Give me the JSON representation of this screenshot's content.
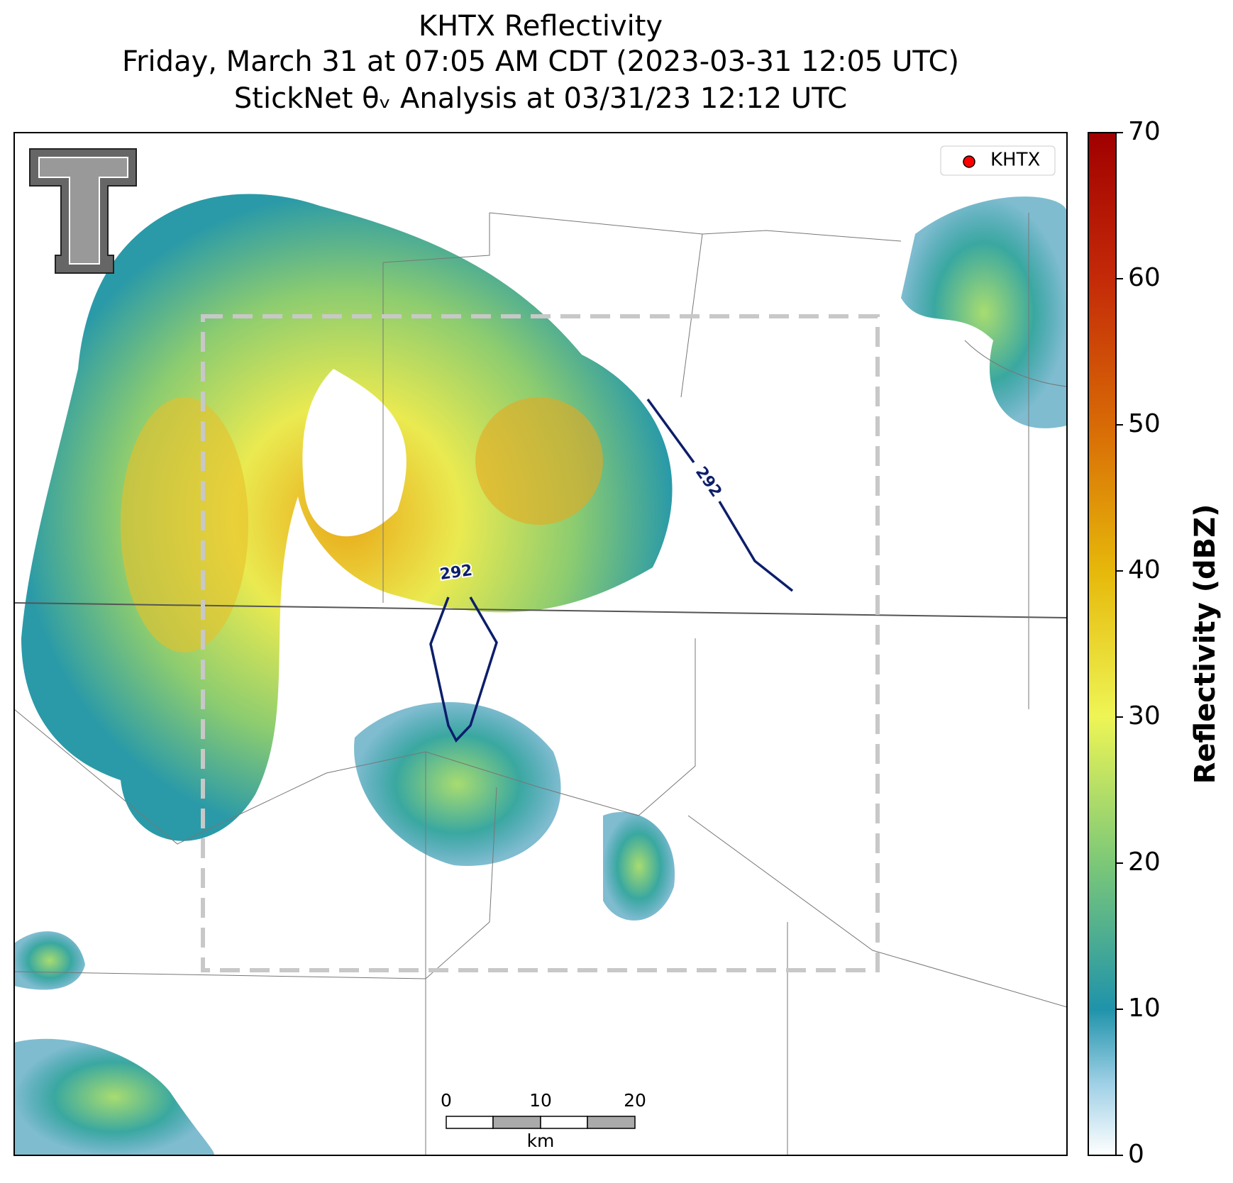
{
  "title": [
    "KHTX Reflectivity",
    "Friday, March 31 at 07:05 AM CDT (2023-03-31 12:05 UTC)",
    "StickNet θᵥ Analysis at 03/31/23 12:12 UTC"
  ],
  "legend": {
    "label": "KHTX",
    "color": "#ff0000"
  },
  "contours": [
    {
      "label": "292"
    },
    {
      "label": "292"
    }
  ],
  "scale_bar": {
    "labels": [
      "0",
      "10",
      "20"
    ],
    "unit": "km"
  },
  "colorbar": {
    "label": "Reflectivity (dBZ)",
    "lim": [
      0,
      70
    ],
    "ticks": [
      0,
      10,
      20,
      30,
      40,
      50,
      60,
      70
    ]
  }
}
